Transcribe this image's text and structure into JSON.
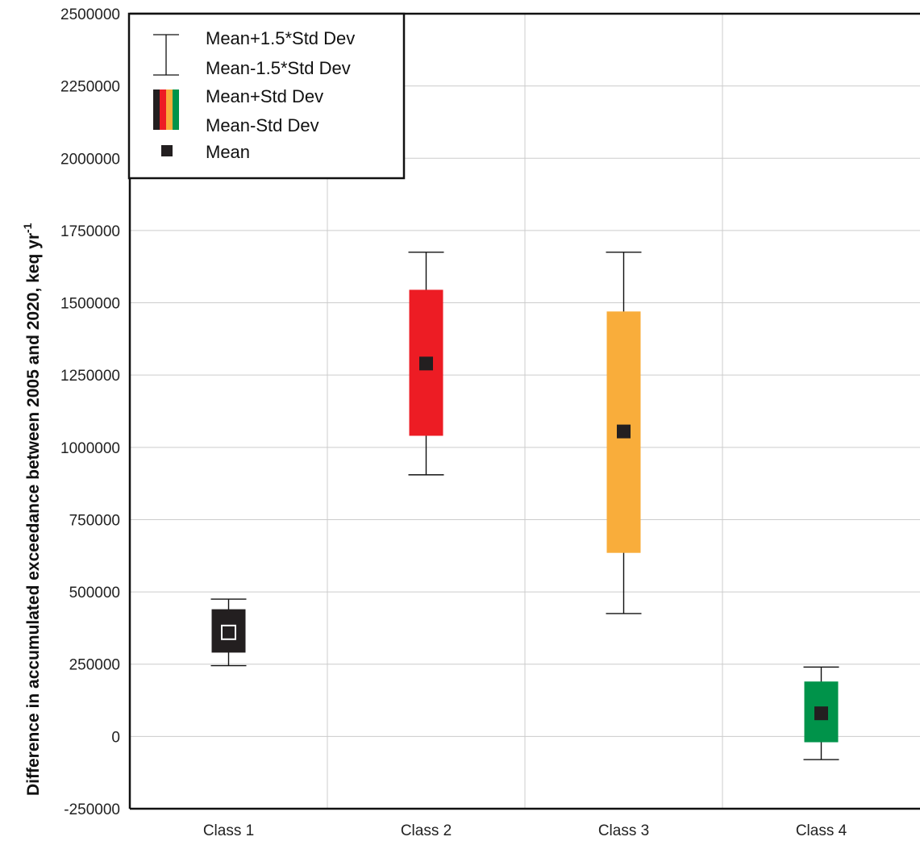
{
  "chart_data": {
    "type": "box",
    "ylabel": "Difference in accumulated exceedance between 2005 and 2020, keq yr",
    "ylabel_superscript": "-1",
    "ylim": [
      -250000,
      2500000
    ],
    "yticks": [
      -250000,
      0,
      250000,
      500000,
      750000,
      1000000,
      1250000,
      1500000,
      1750000,
      2000000,
      2250000,
      2500000
    ],
    "ytick_labels": [
      "-250000",
      "0",
      "250000",
      "500000",
      "750000",
      "1000000",
      "1250000",
      "1500000",
      "1750000",
      "2000000",
      "2250000",
      "2500000"
    ],
    "categories": [
      "Class 1",
      "Class 2",
      "Class 3",
      "Class 4"
    ],
    "grid": true,
    "legend_position": "top-left",
    "legend": {
      "whisker_high": "Mean+1.5*Std Dev",
      "whisker_low": "Mean-1.5*Std Dev",
      "box_high": "Mean+Std Dev",
      "box_low": "Mean-Std Dev",
      "mean": "Mean"
    },
    "series": [
      {
        "category": "Class 1",
        "mean": 360000,
        "box_low": 290000,
        "box_high": 440000,
        "whisker_low": 245000,
        "whisker_high": 475000,
        "color": "#231f20",
        "marker_style": "hollow"
      },
      {
        "category": "Class 2",
        "mean": 1290000,
        "box_low": 1040000,
        "box_high": 1545000,
        "whisker_low": 905000,
        "whisker_high": 1675000,
        "color": "#ed1c24",
        "marker_style": "solid"
      },
      {
        "category": "Class 3",
        "mean": 1055000,
        "box_low": 635000,
        "box_high": 1470000,
        "whisker_low": 425000,
        "whisker_high": 1675000,
        "color": "#f9ad3b",
        "marker_style": "solid"
      },
      {
        "category": "Class 4",
        "mean": 80000,
        "box_low": -20000,
        "box_high": 190000,
        "whisker_low": -80000,
        "whisker_high": 240000,
        "color": "#00934a",
        "marker_style": "solid"
      }
    ]
  }
}
